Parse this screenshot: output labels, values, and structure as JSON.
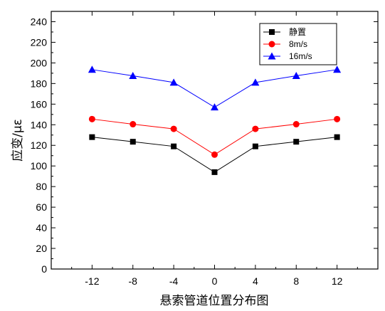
{
  "chart_data": {
    "type": "line",
    "xlabel": "悬索管道位置分布图",
    "ylabel": "应变/με",
    "x": [
      -12,
      -8,
      -4,
      0,
      4,
      8,
      12
    ],
    "x_ticks": [
      -12,
      -8,
      -4,
      0,
      4,
      8,
      12
    ],
    "xlim": [
      -16,
      16
    ],
    "ylim": [
      0,
      250
    ],
    "y_ticks": [
      0,
      20,
      40,
      60,
      80,
      100,
      120,
      140,
      160,
      180,
      200,
      220,
      240
    ],
    "grid": false,
    "legend_position": "top-right",
    "series": [
      {
        "name": "静置",
        "color": "#000000",
        "marker": "square",
        "values": [
          128,
          123.5,
          119,
          94,
          119,
          123.5,
          128
        ]
      },
      {
        "name": "8m/s",
        "color": "#ff0000",
        "marker": "circle",
        "values": [
          145.5,
          140.5,
          136,
          111,
          136,
          140.5,
          145.5
        ]
      },
      {
        "name": "16m/s",
        "color": "#0000ff",
        "marker": "triangle",
        "values": [
          193.5,
          187.5,
          181,
          157,
          181,
          187.5,
          193.5
        ]
      }
    ]
  }
}
